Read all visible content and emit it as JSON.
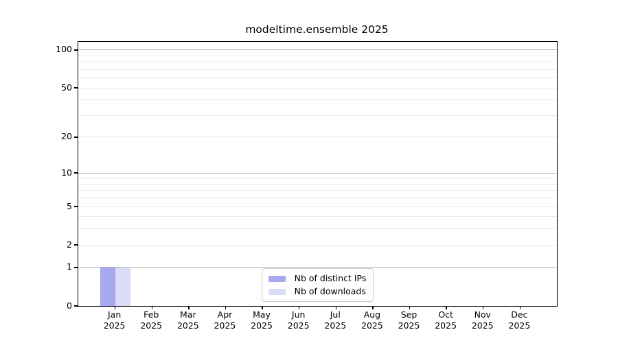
{
  "title": "modeltime.ensemble 2025",
  "chart_data": {
    "type": "bar",
    "title": "modeltime.ensemble 2025",
    "categories": [
      "Jan",
      "Feb",
      "Mar",
      "Apr",
      "May",
      "Jun",
      "Jul",
      "Aug",
      "Sep",
      "Oct",
      "Nov",
      "Dec"
    ],
    "category_year": "2025",
    "series": [
      {
        "name": "Nb of distinct IPs",
        "color": "#a8a8f0",
        "values": [
          1,
          0,
          0,
          0,
          0,
          0,
          0,
          0,
          0,
          0,
          0,
          0
        ]
      },
      {
        "name": "Nb of downloads",
        "color": "#dcdcf8",
        "values": [
          1,
          0,
          0,
          0,
          0,
          0,
          0,
          0,
          0,
          0,
          0,
          0
        ]
      }
    ],
    "y_axis": {
      "scale": "log10(1+v)",
      "ylim": [
        0,
        116
      ],
      "labeled_ticks": [
        0,
        1,
        2,
        5,
        10,
        20,
        50,
        100
      ],
      "major_gridlines": [
        1,
        10,
        100
      ],
      "minor_gridlines": [
        2,
        3,
        4,
        5,
        6,
        7,
        8,
        9,
        20,
        30,
        40,
        50,
        60,
        70,
        80,
        90
      ]
    },
    "legend": {
      "position": "lower center",
      "entries": [
        "Nb of distinct IPs",
        "Nb of downloads"
      ]
    },
    "colors": {
      "major_grid": "#b4b4b4",
      "minor_grid": "#e9e9e9",
      "spine": "#000000",
      "text": "#000000"
    },
    "grid": true
  }
}
